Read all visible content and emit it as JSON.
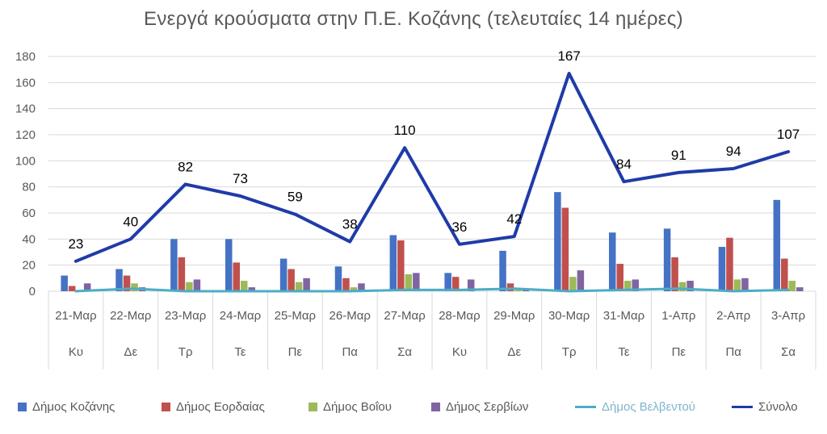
{
  "chart_data": {
    "type": "bar",
    "title": "Ενεργά κρούσματα στην Π.Ε. Κοζάνης (τελευταίες 14 ημέρες)",
    "categories": [
      "21-Μαρ",
      "22-Μαρ",
      "23-Μαρ",
      "24-Μαρ",
      "25-Μαρ",
      "26-Μαρ",
      "27-Μαρ",
      "28-Μαρ",
      "29-Μαρ",
      "30-Μαρ",
      "31-Μαρ",
      "1-Απρ",
      "2-Απρ",
      "3-Απρ"
    ],
    "weekdays": [
      "Κυ",
      "Δε",
      "Τρ",
      "Τε",
      "Πε",
      "Πα",
      "Σα",
      "Κυ",
      "Δε",
      "Τρ",
      "Τε",
      "Πε",
      "Πα",
      "Σα"
    ],
    "ylim": [
      0,
      180
    ],
    "yticks": [
      0,
      20,
      40,
      60,
      80,
      100,
      120,
      140,
      160,
      180
    ],
    "grid": true,
    "legend": "bottom",
    "series": [
      {
        "name": "Δήμος Κοζάνης",
        "kind": "bar",
        "color": "#4472c4",
        "values": [
          12,
          17,
          40,
          40,
          25,
          19,
          43,
          14,
          31,
          76,
          45,
          48,
          34,
          70
        ]
      },
      {
        "name": "Δήμος Εορδαίας",
        "kind": "bar",
        "color": "#c0504d",
        "values": [
          4,
          12,
          26,
          22,
          17,
          10,
          39,
          11,
          6,
          64,
          21,
          26,
          41,
          25
        ]
      },
      {
        "name": "Δήμος Βοΐου",
        "kind": "bar",
        "color": "#9bbb59",
        "values": [
          1,
          6,
          7,
          8,
          7,
          3,
          13,
          1,
          1,
          11,
          8,
          7,
          9,
          8
        ]
      },
      {
        "name": "Δήμος Σερβίων",
        "kind": "bar",
        "color": "#8064a2",
        "values": [
          6,
          3,
          9,
          3,
          10,
          6,
          14,
          9,
          2,
          16,
          9,
          8,
          10,
          3
        ]
      },
      {
        "name": "Δήμος Βελβεντού",
        "kind": "line",
        "color": "#4bacc6",
        "values": [
          0,
          2,
          0,
          0,
          0,
          0,
          1,
          1,
          2,
          0,
          1,
          2,
          0,
          1
        ]
      },
      {
        "name": "Σύνολο",
        "kind": "line",
        "color": "#1f3ba8",
        "values": [
          23,
          40,
          82,
          73,
          59,
          38,
          110,
          36,
          42,
          167,
          84,
          91,
          94,
          107
        ],
        "data_labels": true
      }
    ]
  }
}
